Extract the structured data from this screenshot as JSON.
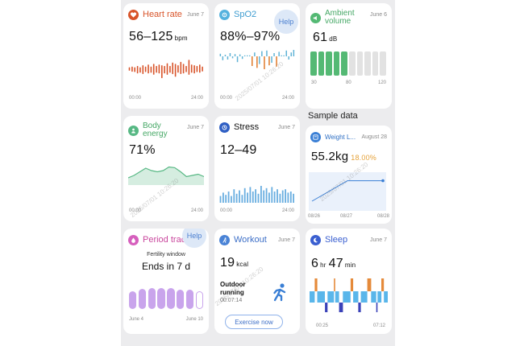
{
  "section_label": "Sample data",
  "watermark_text": "2025/07/01 10:26:20",
  "colors": {
    "heart": "#d8542a",
    "spo2_up": "#5fb3d6",
    "spo2_down": "#e07a2a",
    "ambient": "#54b974",
    "ambient_idle": "#e2e2e2",
    "body": "#57b884",
    "stress": "#69aee0",
    "weight": "#3a7fd5",
    "weight_pct": "#e5a23a",
    "period": "#c9a4ec",
    "workout": "#4a83d6",
    "sleep_light": "#5ab6ea",
    "sleep_awake": "#e58a3a",
    "sleep_deep": "#3a42b8"
  },
  "cards": {
    "heart_rate": {
      "icon": "heart-icon",
      "title": "Heart rate",
      "date": "June 7",
      "value": "56–125",
      "unit": "bpm",
      "x_start": "00:00",
      "x_end": "24:00",
      "bars": [
        [
          0.48,
          0.58
        ],
        [
          0.45,
          0.6
        ],
        [
          0.44,
          0.58
        ],
        [
          0.4,
          0.62
        ],
        [
          0.42,
          0.58
        ],
        [
          0.38,
          0.64
        ],
        [
          0.44,
          0.6
        ],
        [
          0.4,
          0.66
        ],
        [
          0.42,
          0.6
        ],
        [
          0.36,
          0.68
        ],
        [
          0.42,
          0.62
        ],
        [
          0.4,
          0.66
        ],
        [
          0.26,
          0.64
        ],
        [
          0.4,
          0.62
        ],
        [
          0.36,
          0.7
        ],
        [
          0.42,
          0.62
        ],
        [
          0.38,
          0.72
        ],
        [
          0.3,
          0.68
        ],
        [
          0.42,
          0.64
        ],
        [
          0.38,
          0.74
        ],
        [
          0.4,
          0.68
        ],
        [
          0.44,
          0.62
        ],
        [
          0.36,
          0.8
        ],
        [
          0.42,
          0.66
        ],
        [
          0.4,
          0.64
        ],
        [
          0.44,
          0.62
        ],
        [
          0.42,
          0.66
        ],
        [
          0.46,
          0.6
        ]
      ]
    },
    "spo2": {
      "icon": "spo2-icon",
      "title": "SpO2",
      "date": "June 7",
      "help_label": "Help",
      "value": "88%–97%",
      "x_start": "00:00",
      "x_end": "24:00",
      "deltas": [
        0.08,
        -0.12,
        0.05,
        -0.1,
        0.1,
        -0.06,
        0.07,
        -0.18,
        0.06,
        -0.08,
        0,
        0,
        0,
        -0.3,
        0.12,
        -0.36,
        -0.24,
        0.16,
        -0.4,
        0.18,
        -0.28,
        -0.2,
        0.1,
        -0.32,
        0.14,
        0,
        0,
        0.18,
        -0.1,
        0.12,
        0.2
      ]
    },
    "ambient_volume": {
      "icon": "ambient-icon",
      "title_line1": "Ambient",
      "title_line2": "volume",
      "date": "June 6",
      "value": "61",
      "unit": "dB",
      "x_labels": [
        "30",
        "80",
        "120"
      ],
      "levels": [
        1,
        1,
        1,
        1,
        1,
        0,
        0,
        0,
        0,
        0
      ]
    },
    "body_energy": {
      "icon": "body-energy-icon",
      "title_line1": "Body",
      "title_line2": "energy",
      "date": "June 7",
      "value": "71%",
      "x_start": "00:00",
      "x_end": "24:00",
      "curve": [
        0.3,
        0.4,
        0.55,
        0.7,
        0.6,
        0.55,
        0.6,
        0.75,
        0.72,
        0.55,
        0.35,
        0.4,
        0.45,
        0.35
      ]
    },
    "stress": {
      "icon": "stress-icon",
      "title": "Stress",
      "date": "June 7",
      "value": "12–49",
      "x_start": "00:00",
      "x_end": "24:00",
      "bars": [
        0.3,
        0.45,
        0.35,
        0.5,
        0.3,
        0.6,
        0.4,
        0.55,
        0.35,
        0.65,
        0.45,
        0.7,
        0.5,
        0.6,
        0.4,
        0.75,
        0.55,
        0.65,
        0.45,
        0.7,
        0.5,
        0.6,
        0.4,
        0.55,
        0.6,
        0.45,
        0.5,
        0.4
      ]
    },
    "weight": {
      "icon": "scale-icon",
      "title": "Weight L...",
      "date": "August 28",
      "value": "55.2kg",
      "percent": "18.00%",
      "x_labels": [
        "08/26",
        "08/27",
        "08/28"
      ],
      "points": [
        0.25,
        0.78,
        0.78
      ]
    },
    "period": {
      "icon": "period-icon",
      "title": "Period tracke",
      "help_label": "Help",
      "subtitle": "Fertility window",
      "value": "Ends in 7 d",
      "x_start": "June 4",
      "x_end": "June 10",
      "bars": [
        0.8,
        0.88,
        0.92,
        0.92,
        0.92,
        0.86,
        0.86,
        0.8
      ]
    },
    "workout": {
      "icon": "workout-icon",
      "title": "Workout",
      "date": "June 7",
      "value": "19",
      "unit": "kcal",
      "activity": "Outdoor running",
      "duration": "00:07:14",
      "button_label": "Exercise now"
    },
    "sleep": {
      "icon": "sleep-icon",
      "title": "Sleep",
      "date": "June 7",
      "hours": "6",
      "hours_unit": "hr",
      "minutes": "47",
      "minutes_unit": "min",
      "x_start": "00:25",
      "x_end": "07:12",
      "segments": [
        {
          "s": "light",
          "w": 4
        },
        {
          "s": "awake",
          "w": 2
        },
        {
          "s": "light",
          "w": 6
        },
        {
          "s": "deep",
          "w": 2
        },
        {
          "s": "light",
          "w": 5
        },
        {
          "s": "awake",
          "w": 1
        },
        {
          "s": "light",
          "w": 3
        },
        {
          "s": "deep",
          "w": 3
        },
        {
          "s": "light",
          "w": 6
        },
        {
          "s": "awake",
          "w": 2
        },
        {
          "s": "light",
          "w": 4
        },
        {
          "s": "deep",
          "w": 2
        },
        {
          "s": "light",
          "w": 5
        },
        {
          "s": "awake",
          "w": 3
        },
        {
          "s": "light",
          "w": 4
        },
        {
          "s": "deep",
          "w": 1
        },
        {
          "s": "light",
          "w": 3
        },
        {
          "s": "awake",
          "w": 2
        },
        {
          "s": "light",
          "w": 3
        }
      ]
    }
  }
}
